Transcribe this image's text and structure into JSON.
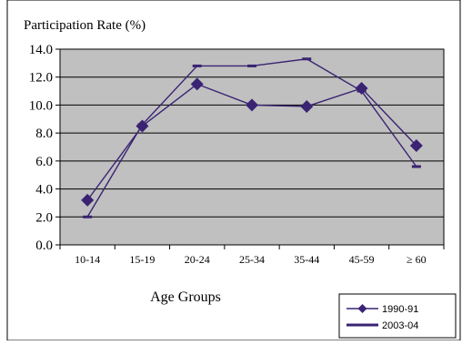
{
  "chart_data": {
    "type": "line",
    "ylabel": "Participation Rate (%)",
    "xlabel": "Age Groups",
    "categories": [
      "10-14",
      "15-19",
      "20-24",
      "25-34",
      "35-44",
      "45-59",
      "≥ 60"
    ],
    "ylim": [
      0,
      14
    ],
    "yticks": [
      "0.0",
      "2.0",
      "4.0",
      "6.0",
      "8.0",
      "10.0",
      "12.0",
      "14.0"
    ],
    "grid": true,
    "legend_position": "bottom-right",
    "series": [
      {
        "name": "1990-91",
        "values": [
          3.2,
          8.5,
          11.5,
          10.0,
          9.9,
          11.2,
          7.1
        ],
        "color": "#3a2373",
        "marker": "diamond"
      },
      {
        "name": "2003-04",
        "values": [
          2.0,
          8.6,
          12.8,
          12.8,
          13.3,
          11.0,
          5.6
        ],
        "color": "#3a2373",
        "marker": "dash"
      }
    ],
    "plot_background": "#c0c0c0"
  }
}
